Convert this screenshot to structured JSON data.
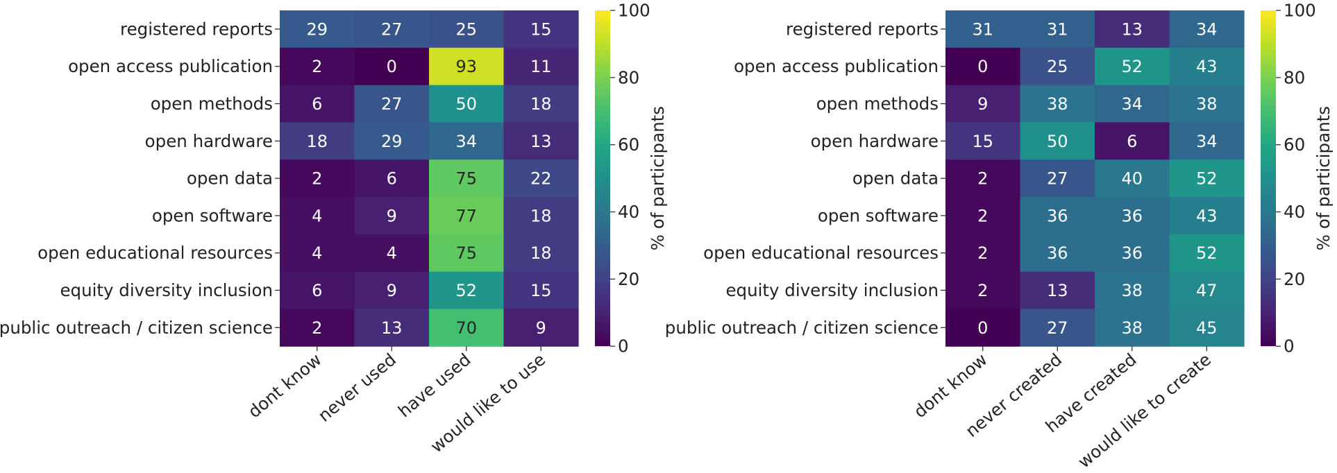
{
  "chart_data": [
    {
      "type": "heatmap",
      "title": "",
      "xlabel": "",
      "ylabel": "",
      "rows": [
        "registered reports",
        "open access publication",
        "open methods",
        "open hardware",
        "open data",
        "open software",
        "open educational resources",
        "equity diversity inclusion",
        "public outreach / citizen science"
      ],
      "columns": [
        "dont know",
        "never used",
        "have used",
        "would like to use"
      ],
      "values": [
        [
          29,
          27,
          25,
          15
        ],
        [
          2,
          0,
          93,
          11
        ],
        [
          6,
          27,
          50,
          18
        ],
        [
          18,
          29,
          34,
          13
        ],
        [
          2,
          6,
          75,
          22
        ],
        [
          4,
          9,
          77,
          18
        ],
        [
          4,
          4,
          75,
          18
        ],
        [
          6,
          9,
          52,
          15
        ],
        [
          2,
          13,
          70,
          9
        ]
      ],
      "colorbar": {
        "label": "% of participants",
        "range": [
          0,
          100
        ],
        "ticks": [
          0,
          20,
          40,
          60,
          80,
          100
        ],
        "colormap": "viridis"
      }
    },
    {
      "type": "heatmap",
      "title": "",
      "xlabel": "",
      "ylabel": "",
      "rows": [
        "registered reports",
        "open access publication",
        "open methods",
        "open hardware",
        "open data",
        "open software",
        "open educational resources",
        "equity diversity inclusion",
        "public outreach / citizen science"
      ],
      "columns": [
        "dont know",
        "never created",
        "have created",
        "would like to create"
      ],
      "values": [
        [
          31,
          31,
          13,
          34
        ],
        [
          0,
          25,
          52,
          43
        ],
        [
          9,
          38,
          34,
          38
        ],
        [
          15,
          50,
          6,
          34
        ],
        [
          2,
          27,
          40,
          52
        ],
        [
          2,
          36,
          36,
          43
        ],
        [
          2,
          36,
          36,
          52
        ],
        [
          2,
          13,
          38,
          47
        ],
        [
          0,
          27,
          38,
          45
        ]
      ],
      "colorbar": {
        "label": "% of participants",
        "range": [
          0,
          100
        ],
        "ticks": [
          0,
          20,
          40,
          60,
          80,
          100
        ],
        "colormap": "viridis"
      }
    }
  ]
}
